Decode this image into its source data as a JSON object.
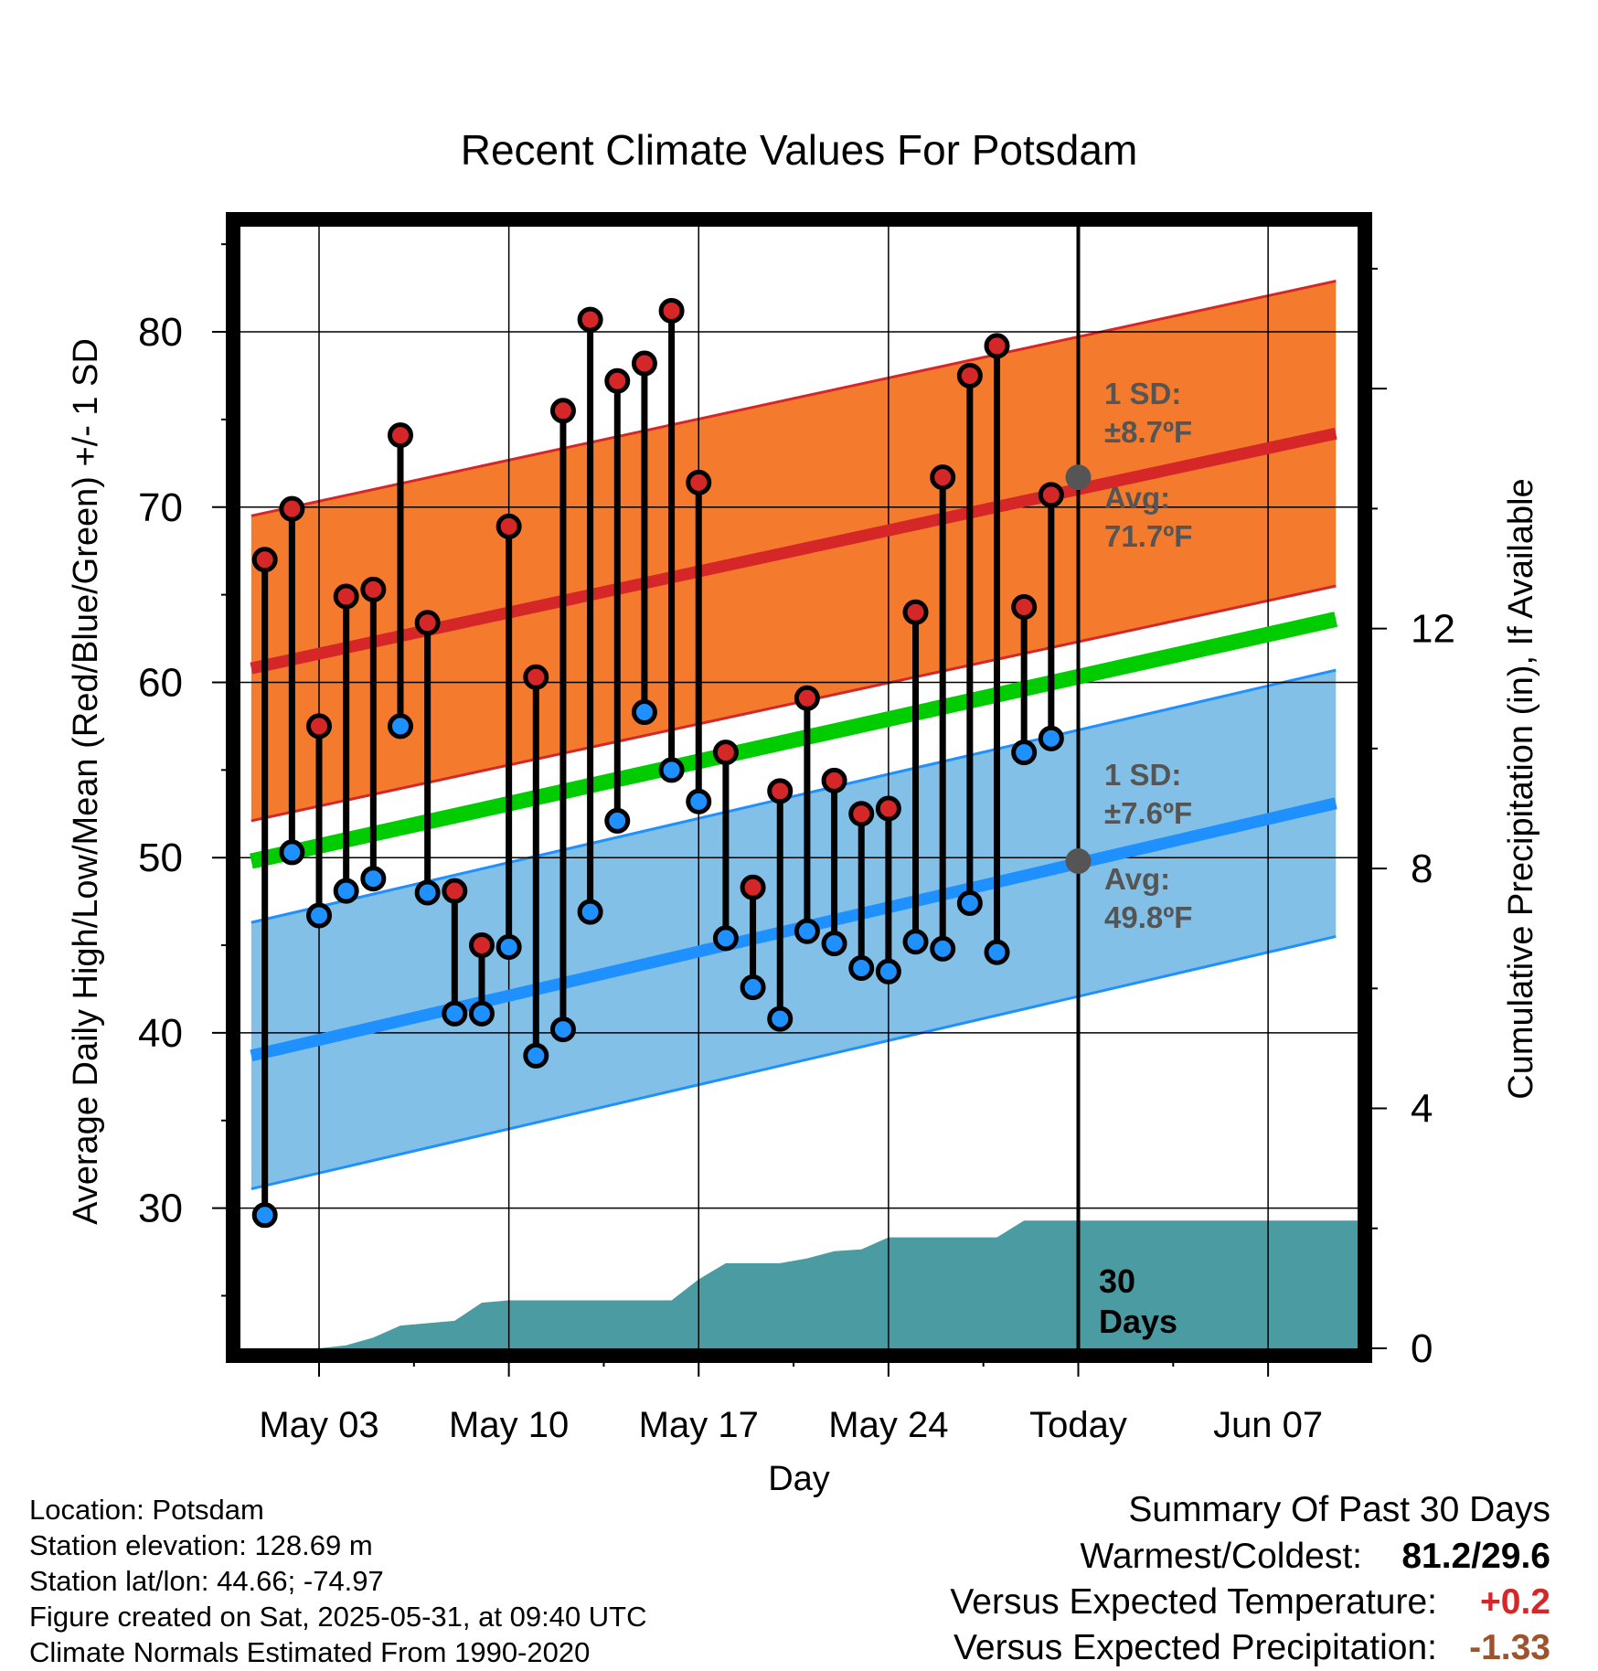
{
  "title": "Recent Climate Values For Potsdam",
  "chart_data": {
    "type": "line",
    "title": "Recent Climate Values For Potsdam",
    "xlabel": "Day",
    "ylabel": "Average Daily High/Low/Mean (Red/Blue/Green) +/- 1 SD",
    "y2label": "Cumulative Precipitation (in), If Available",
    "x_range_days": [
      -30.9,
      10.3
    ],
    "x_ticks": [
      {
        "day": -28,
        "label": "May 03"
      },
      {
        "day": -21,
        "label": "May 10"
      },
      {
        "day": -14,
        "label": "May 17"
      },
      {
        "day": -7,
        "label": "May 24"
      },
      {
        "day": 0,
        "label": "Today"
      },
      {
        "day": 7,
        "label": "Jun 07"
      }
    ],
    "ylim": [
      22,
      86
    ],
    "y_ticks": [
      30,
      40,
      50,
      60,
      70,
      80
    ],
    "y2lim": [
      0,
      18.7
    ],
    "y2_ticks": [
      0,
      4,
      8,
      12
    ],
    "grid": true,
    "today_day": 0,
    "normals": {
      "day_start": -30.5,
      "day_end": 9.5,
      "high_mean": [
        60.8,
        74.2
      ],
      "high_sd": 8.7,
      "low_mean": [
        38.7,
        53.1
      ],
      "low_sd": 7.6,
      "mean_green": [
        49.8,
        63.6
      ]
    },
    "series": [
      {
        "name": "High",
        "color": "#d62728",
        "x": [
          -30,
          -29,
          -28,
          -27,
          -26,
          -25,
          -24,
          -23,
          -22,
          -21,
          -20,
          -19,
          -18,
          -17,
          -16,
          -15,
          -14,
          -13,
          -12,
          -11,
          -10,
          -9,
          -8,
          -7,
          -6,
          -5,
          -4,
          -3,
          -2,
          -1
        ],
        "values": [
          67.0,
          69.9,
          57.5,
          64.9,
          65.3,
          74.1,
          63.4,
          48.1,
          45.0,
          68.9,
          60.3,
          75.5,
          80.7,
          77.2,
          78.2,
          81.2,
          71.4,
          56.0,
          48.3,
          53.8,
          59.1,
          54.4,
          52.5,
          52.8,
          64.0,
          71.7,
          77.5,
          79.2,
          64.3,
          70.7
        ]
      },
      {
        "name": "Low",
        "color": "#1e90ff",
        "x": [
          -30,
          -29,
          -28,
          -27,
          -26,
          -25,
          -24,
          -23,
          -22,
          -21,
          -20,
          -19,
          -18,
          -17,
          -16,
          -15,
          -14,
          -13,
          -12,
          -11,
          -10,
          -9,
          -8,
          -7,
          -6,
          -5,
          -4,
          -3,
          -2,
          -1
        ],
        "values": [
          29.6,
          50.3,
          46.7,
          48.1,
          48.8,
          57.5,
          48.0,
          41.1,
          41.1,
          44.9,
          38.7,
          40.2,
          46.9,
          52.1,
          58.3,
          55.0,
          53.2,
          45.4,
          42.6,
          40.8,
          45.8,
          45.1,
          43.7,
          43.5,
          45.2,
          44.8,
          47.4,
          44.6,
          56.0,
          56.8
        ]
      },
      {
        "name": "Precipitation",
        "color": "#4b9ba3",
        "x": [
          -28,
          -27,
          -26,
          -25,
          -24,
          -23,
          -22,
          -21,
          -20,
          -19,
          -18,
          -17,
          -16,
          -15,
          -14,
          -13,
          -12,
          -11,
          -10,
          -9,
          -8,
          -7,
          -6,
          -5,
          -4,
          -3,
          -2,
          -1,
          0
        ],
        "values": [
          0.0,
          0.05,
          0.18,
          0.38,
          0.42,
          0.46,
          0.76,
          0.8,
          0.8,
          0.8,
          0.8,
          0.8,
          0.8,
          0.8,
          1.15,
          1.42,
          1.42,
          1.42,
          1.5,
          1.62,
          1.65,
          1.85,
          1.85,
          1.85,
          1.85,
          1.85,
          2.13,
          2.13,
          2.13
        ]
      }
    ],
    "annotations": {
      "high_sd_label": "1 SD:",
      "high_sd_value": "±8.7ºF",
      "high_avg_label": "Avg:",
      "high_avg_value": "71.7ºF",
      "low_sd_label": "1 SD:",
      "low_sd_value": "±7.6ºF",
      "low_avg_label": "Avg:",
      "low_avg_value": "49.8ºF",
      "days_label_1": "30",
      "days_label_2": "Days"
    },
    "colors": {
      "high_band": "#f47a2e",
      "high_line": "#d62728",
      "low_band": "#82c0e8",
      "low_line": "#1e90ff",
      "mean_line": "#00cc00",
      "precip_fill": "#4b9ba3",
      "annotation_text": "#555555"
    }
  },
  "footer": {
    "location": "Location: Potsdam",
    "elevation": "Station elevation: 128.69 m",
    "latlon": "Station lat/lon: 44.66; -74.97",
    "created": "Figure created on Sat, 2025-05-31, at 09:40 UTC",
    "normals": "Climate Normals Estimated From 1990-2020"
  },
  "summary": {
    "heading": "Summary Of Past 30 Days",
    "warmest_label": "Warmest/Coldest:",
    "warmest_value": "81.2/29.6",
    "temp_label": "Versus Expected Temperature:",
    "temp_value": "+0.2",
    "precip_label": "Versus Expected Precipitation:",
    "precip_value": "-1.33"
  }
}
